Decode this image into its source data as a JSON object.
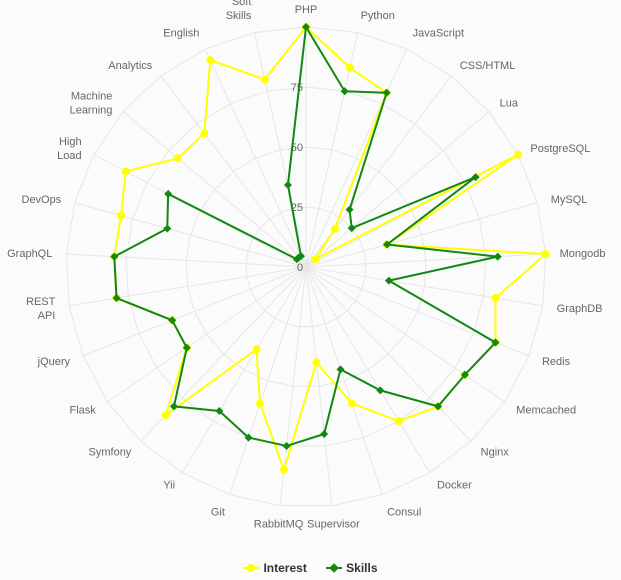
{
  "chart_data": {
    "type": "radar",
    "categories": [
      "PHP",
      "Python",
      "JavaScript",
      "CSS/HTML",
      "Lua",
      "PostgreSQL",
      "MySQL",
      "Mongodb",
      "GraphDB",
      "Redis",
      "Memcached",
      "Nginx",
      "Docker",
      "Consul",
      "Supervisor",
      "RabbitMQ",
      "Git",
      "Yii",
      "Symfony",
      "Flask",
      "jQuery",
      "REST API",
      "GraphQL",
      "DevOps",
      "High Load",
      "Machine Learning",
      "Analytics",
      "English",
      "Soft Skills"
    ],
    "ylim": [
      0,
      100
    ],
    "ticks": [
      "0",
      "25",
      "50",
      "75"
    ],
    "series": [
      {
        "name": "Interest",
        "color": "#ffff00",
        "marker": "circle",
        "values": [
          100,
          85,
          80,
          20,
          5,
          100,
          35,
          100,
          80,
          85,
          80,
          80,
          75,
          60,
          40,
          85,
          60,
          40,
          85,
          60,
          60,
          80,
          80,
          80,
          85,
          70,
          70,
          95,
          80
        ]
      },
      {
        "name": "Skills",
        "color": "#118811",
        "marker": "diamond",
        "values": [
          100,
          75,
          80,
          30,
          25,
          80,
          35,
          80,
          35,
          85,
          80,
          80,
          60,
          45,
          70,
          75,
          75,
          70,
          80,
          60,
          60,
          80,
          80,
          60,
          65,
          5,
          5,
          5,
          35
        ]
      }
    ]
  },
  "legend": {
    "interest": "Interest",
    "skills": "Skills"
  }
}
